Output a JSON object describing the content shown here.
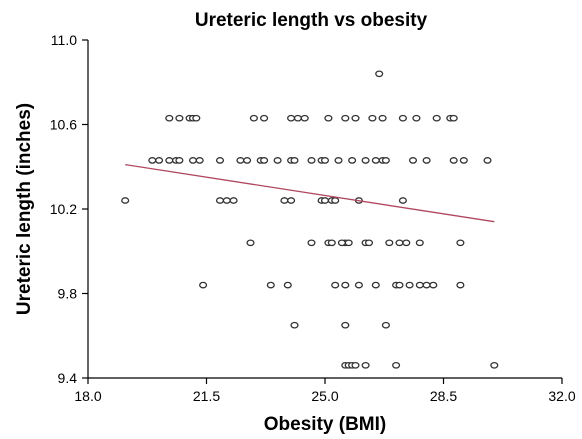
{
  "chart_data": {
    "type": "scatter",
    "title": "Ureteric length vs obesity",
    "xlabel": "Obesity (BMI)",
    "ylabel": "Ureteric length (inches)",
    "xlim": [
      18.0,
      32.0
    ],
    "ylim": [
      9.4,
      11.0
    ],
    "x_ticks": [
      "18.0",
      "21.5",
      "25.0",
      "28.5",
      "32.0"
    ],
    "y_ticks": [
      "9.4",
      "9.8",
      "10.2",
      "10.6",
      "11.0"
    ],
    "grid": false,
    "legend": "none",
    "colors": {
      "points": "#333333",
      "trend": "#b0475f"
    },
    "trend_line": {
      "x": [
        19.1,
        30.0
      ],
      "y": [
        10.41,
        10.14
      ]
    },
    "points": [
      {
        "x": 19.1,
        "y": 10.24
      },
      {
        "x": 19.9,
        "y": 10.43
      },
      {
        "x": 20.1,
        "y": 10.43
      },
      {
        "x": 20.4,
        "y": 10.43
      },
      {
        "x": 20.6,
        "y": 10.43
      },
      {
        "x": 20.7,
        "y": 10.43
      },
      {
        "x": 20.4,
        "y": 10.63
      },
      {
        "x": 20.7,
        "y": 10.63
      },
      {
        "x": 21.0,
        "y": 10.63
      },
      {
        "x": 21.1,
        "y": 10.63
      },
      {
        "x": 21.2,
        "y": 10.63
      },
      {
        "x": 21.1,
        "y": 10.43
      },
      {
        "x": 21.3,
        "y": 10.43
      },
      {
        "x": 21.9,
        "y": 10.43
      },
      {
        "x": 21.4,
        "y": 9.84
      },
      {
        "x": 21.9,
        "y": 10.24
      },
      {
        "x": 22.1,
        "y": 10.24
      },
      {
        "x": 22.3,
        "y": 10.24
      },
      {
        "x": 22.5,
        "y": 10.43
      },
      {
        "x": 22.7,
        "y": 10.43
      },
      {
        "x": 22.8,
        "y": 10.04
      },
      {
        "x": 22.9,
        "y": 10.63
      },
      {
        "x": 23.2,
        "y": 10.63
      },
      {
        "x": 23.1,
        "y": 10.43
      },
      {
        "x": 23.2,
        "y": 10.43
      },
      {
        "x": 23.4,
        "y": 9.84
      },
      {
        "x": 23.6,
        "y": 10.43
      },
      {
        "x": 23.8,
        "y": 10.24
      },
      {
        "x": 24.0,
        "y": 10.24
      },
      {
        "x": 23.9,
        "y": 9.84
      },
      {
        "x": 24.0,
        "y": 10.63
      },
      {
        "x": 24.2,
        "y": 10.63
      },
      {
        "x": 24.4,
        "y": 10.63
      },
      {
        "x": 24.0,
        "y": 10.43
      },
      {
        "x": 24.1,
        "y": 10.43
      },
      {
        "x": 24.1,
        "y": 9.65
      },
      {
        "x": 24.6,
        "y": 10.43
      },
      {
        "x": 24.6,
        "y": 10.04
      },
      {
        "x": 24.9,
        "y": 10.24
      },
      {
        "x": 25.0,
        "y": 10.24
      },
      {
        "x": 24.9,
        "y": 10.43
      },
      {
        "x": 25.0,
        "y": 10.43
      },
      {
        "x": 25.1,
        "y": 10.63
      },
      {
        "x": 25.1,
        "y": 10.04
      },
      {
        "x": 25.2,
        "y": 10.24
      },
      {
        "x": 25.3,
        "y": 10.24
      },
      {
        "x": 25.3,
        "y": 9.84
      },
      {
        "x": 25.2,
        "y": 10.04
      },
      {
        "x": 25.4,
        "y": 10.43
      },
      {
        "x": 25.6,
        "y": 10.63
      },
      {
        "x": 25.6,
        "y": 10.04
      },
      {
        "x": 25.7,
        "y": 10.04
      },
      {
        "x": 25.5,
        "y": 10.04
      },
      {
        "x": 25.6,
        "y": 9.65
      },
      {
        "x": 25.6,
        "y": 9.84
      },
      {
        "x": 25.6,
        "y": 9.46
      },
      {
        "x": 25.7,
        "y": 9.46
      },
      {
        "x": 25.8,
        "y": 9.46
      },
      {
        "x": 25.9,
        "y": 9.46
      },
      {
        "x": 25.8,
        "y": 10.43
      },
      {
        "x": 25.9,
        "y": 10.63
      },
      {
        "x": 26.0,
        "y": 10.24
      },
      {
        "x": 26.0,
        "y": 9.84
      },
      {
        "x": 26.2,
        "y": 9.46
      },
      {
        "x": 26.2,
        "y": 10.04
      },
      {
        "x": 26.2,
        "y": 10.43
      },
      {
        "x": 26.4,
        "y": 10.63
      },
      {
        "x": 26.3,
        "y": 10.04
      },
      {
        "x": 26.5,
        "y": 9.84
      },
      {
        "x": 26.5,
        "y": 10.43
      },
      {
        "x": 26.7,
        "y": 10.43
      },
      {
        "x": 26.6,
        "y": 10.84
      },
      {
        "x": 26.7,
        "y": 10.63
      },
      {
        "x": 26.8,
        "y": 9.65
      },
      {
        "x": 26.8,
        "y": 10.43
      },
      {
        "x": 26.9,
        "y": 10.04
      },
      {
        "x": 27.1,
        "y": 9.46
      },
      {
        "x": 27.1,
        "y": 9.84
      },
      {
        "x": 27.2,
        "y": 10.04
      },
      {
        "x": 27.2,
        "y": 9.84
      },
      {
        "x": 27.3,
        "y": 10.24
      },
      {
        "x": 27.3,
        "y": 10.63
      },
      {
        "x": 27.4,
        "y": 10.04
      },
      {
        "x": 27.5,
        "y": 9.84
      },
      {
        "x": 27.6,
        "y": 10.43
      },
      {
        "x": 27.7,
        "y": 10.63
      },
      {
        "x": 27.8,
        "y": 10.04
      },
      {
        "x": 27.8,
        "y": 9.84
      },
      {
        "x": 28.0,
        "y": 9.84
      },
      {
        "x": 28.0,
        "y": 10.43
      },
      {
        "x": 28.2,
        "y": 9.84
      },
      {
        "x": 28.3,
        "y": 10.63
      },
      {
        "x": 28.7,
        "y": 10.63
      },
      {
        "x": 28.8,
        "y": 10.63
      },
      {
        "x": 28.8,
        "y": 10.43
      },
      {
        "x": 29.0,
        "y": 9.84
      },
      {
        "x": 29.0,
        "y": 10.04
      },
      {
        "x": 29.1,
        "y": 10.43
      },
      {
        "x": 29.8,
        "y": 10.43
      },
      {
        "x": 30.0,
        "y": 9.46
      }
    ]
  }
}
